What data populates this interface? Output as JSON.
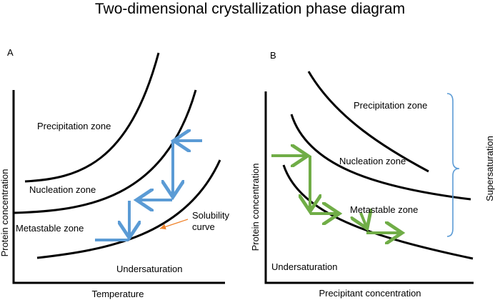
{
  "title": "Two-dimensional crystallization phase diagram",
  "panel_a": {
    "label": "A",
    "zones": {
      "precipitation": "Precipitation zone",
      "nucleation": "Nucleation zone",
      "metastable": "Metastable zone",
      "undersaturation": "Undersaturation"
    },
    "annotation_line1": "Solubility",
    "annotation_line2": "curve",
    "x_axis_label": "Temperature",
    "y_axis_label": "Protein concentration",
    "path_color": "#5b9bd5",
    "annotation_color": "#f0822a"
  },
  "panel_b": {
    "label": "B",
    "zones": {
      "precipitation": "Precipitation zone",
      "nucleation": "Nucleation zone",
      "metastable": "Metastable zone",
      "undersaturation": "Undersaturation"
    },
    "supersaturation_label": "Supersaturation",
    "x_axis_label": "Precipitant concentration",
    "y_axis_label": "Protein concentration",
    "path_color": "#70ad47",
    "brace_color": "#5b9bd5"
  }
}
